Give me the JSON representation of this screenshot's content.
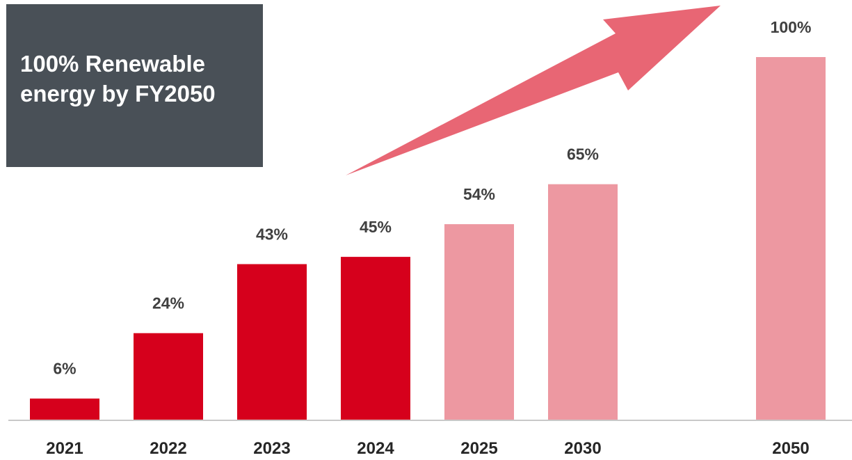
{
  "title_box": {
    "text": "100% Renewable\nenergy by FY2050"
  },
  "chart_data": {
    "type": "bar",
    "title": "100% Renewable energy by FY2050",
    "categories": [
      "2021",
      "2022",
      "2023",
      "2024",
      "2025",
      "2030",
      "2050"
    ],
    "values": [
      6,
      24,
      43,
      45,
      54,
      65,
      100
    ],
    "labels": [
      "6%",
      "24%",
      "43%",
      "45%",
      "54%",
      "65%",
      "100%"
    ],
    "bar_styles": [
      "actual",
      "actual",
      "actual",
      "actual",
      "target",
      "target",
      "target"
    ],
    "ylim": [
      0,
      100
    ],
    "unit": "%",
    "grid": false,
    "legend": "none",
    "xlabel": "",
    "ylabel": ""
  },
  "colors": {
    "actual": "#d6001c",
    "target": "#ed98a1",
    "arrow": "#e86674",
    "title_box": "#495057",
    "baseline": "#c8c8c8",
    "label_text": "#404040"
  },
  "icons": {
    "trend_arrow": "upward-trend-arrow-icon"
  }
}
